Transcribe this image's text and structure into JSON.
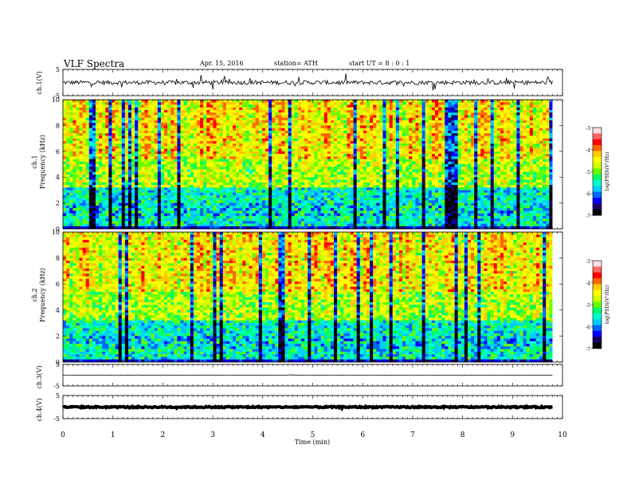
{
  "chart_data": {
    "type": "heatmap",
    "title": "VLF  Spectra",
    "date": "Apr. 15, 2016",
    "station": "station= ATH",
    "start": "start  UT  =    8  : 0  : 1",
    "xlabel": "Time  (min)",
    "x_ticks": [
      "0",
      "1",
      "2",
      "3",
      "4",
      "5",
      "6",
      "7",
      "8",
      "9",
      "10"
    ],
    "xlim": [
      0,
      10
    ],
    "data_end_min": 9.8,
    "panels": [
      {
        "id": "ch1-waveform",
        "type": "line",
        "ylabel": "ch.1(V)",
        "ylim": [
          -5,
          5
        ],
        "y_ticks": [
          "5",
          "-5"
        ],
        "baseline": 0,
        "noise_amplitude": 0.8,
        "spike_amplitude": 3
      },
      {
        "id": "ch1-spectrogram",
        "type": "heatmap",
        "ylabel": "ch.1\nFrequency (kHz)",
        "ylim": [
          0,
          10
        ],
        "y_ticks": [
          "0",
          "2",
          "4",
          "6",
          "8",
          "10"
        ],
        "colorbar": {
          "label": "log(PSD)(V²/Hz)",
          "range": [
            -7,
            -3
          ],
          "ticks": [
            "-3",
            "-4",
            "-5",
            "-6",
            "-7"
          ]
        }
      },
      {
        "id": "ch2-spectrogram",
        "type": "heatmap",
        "ylabel": "ch.2\nFrequency (kHz)",
        "ylim": [
          0,
          10
        ],
        "y_ticks": [
          "0",
          "2",
          "4",
          "6",
          "8",
          "10"
        ],
        "colorbar": {
          "label": "log(PSD)(V²/Hz)",
          "range": [
            -7,
            -3
          ],
          "ticks": [
            "-3",
            "-4",
            "-5",
            "-6",
            "-7"
          ]
        }
      },
      {
        "id": "ch3-waveform",
        "type": "line",
        "ylabel": "ch.3(V)",
        "ylim": [
          -5,
          5
        ],
        "y_ticks": [
          "5",
          "-5"
        ],
        "baseline": 0,
        "noise_amplitude": 0.05,
        "spike_amplitude": 0.2
      },
      {
        "id": "ch4-waveform",
        "type": "line",
        "ylabel": "ch.4(V)",
        "ylim": [
          -5,
          5
        ],
        "y_ticks": [
          "5",
          "-5"
        ],
        "baseline": 0,
        "noise_amplitude": 0.3,
        "spike_amplitude": 0.3
      }
    ],
    "colormap": [
      "#000000",
      "#1a0066",
      "#0000ff",
      "#0066ff",
      "#00ccff",
      "#00ffcc",
      "#00ff66",
      "#66ff00",
      "#ccff00",
      "#ffff00",
      "#ffcc00",
      "#ff6600",
      "#ff0000",
      "#ff6666",
      "#ffdddd"
    ]
  }
}
